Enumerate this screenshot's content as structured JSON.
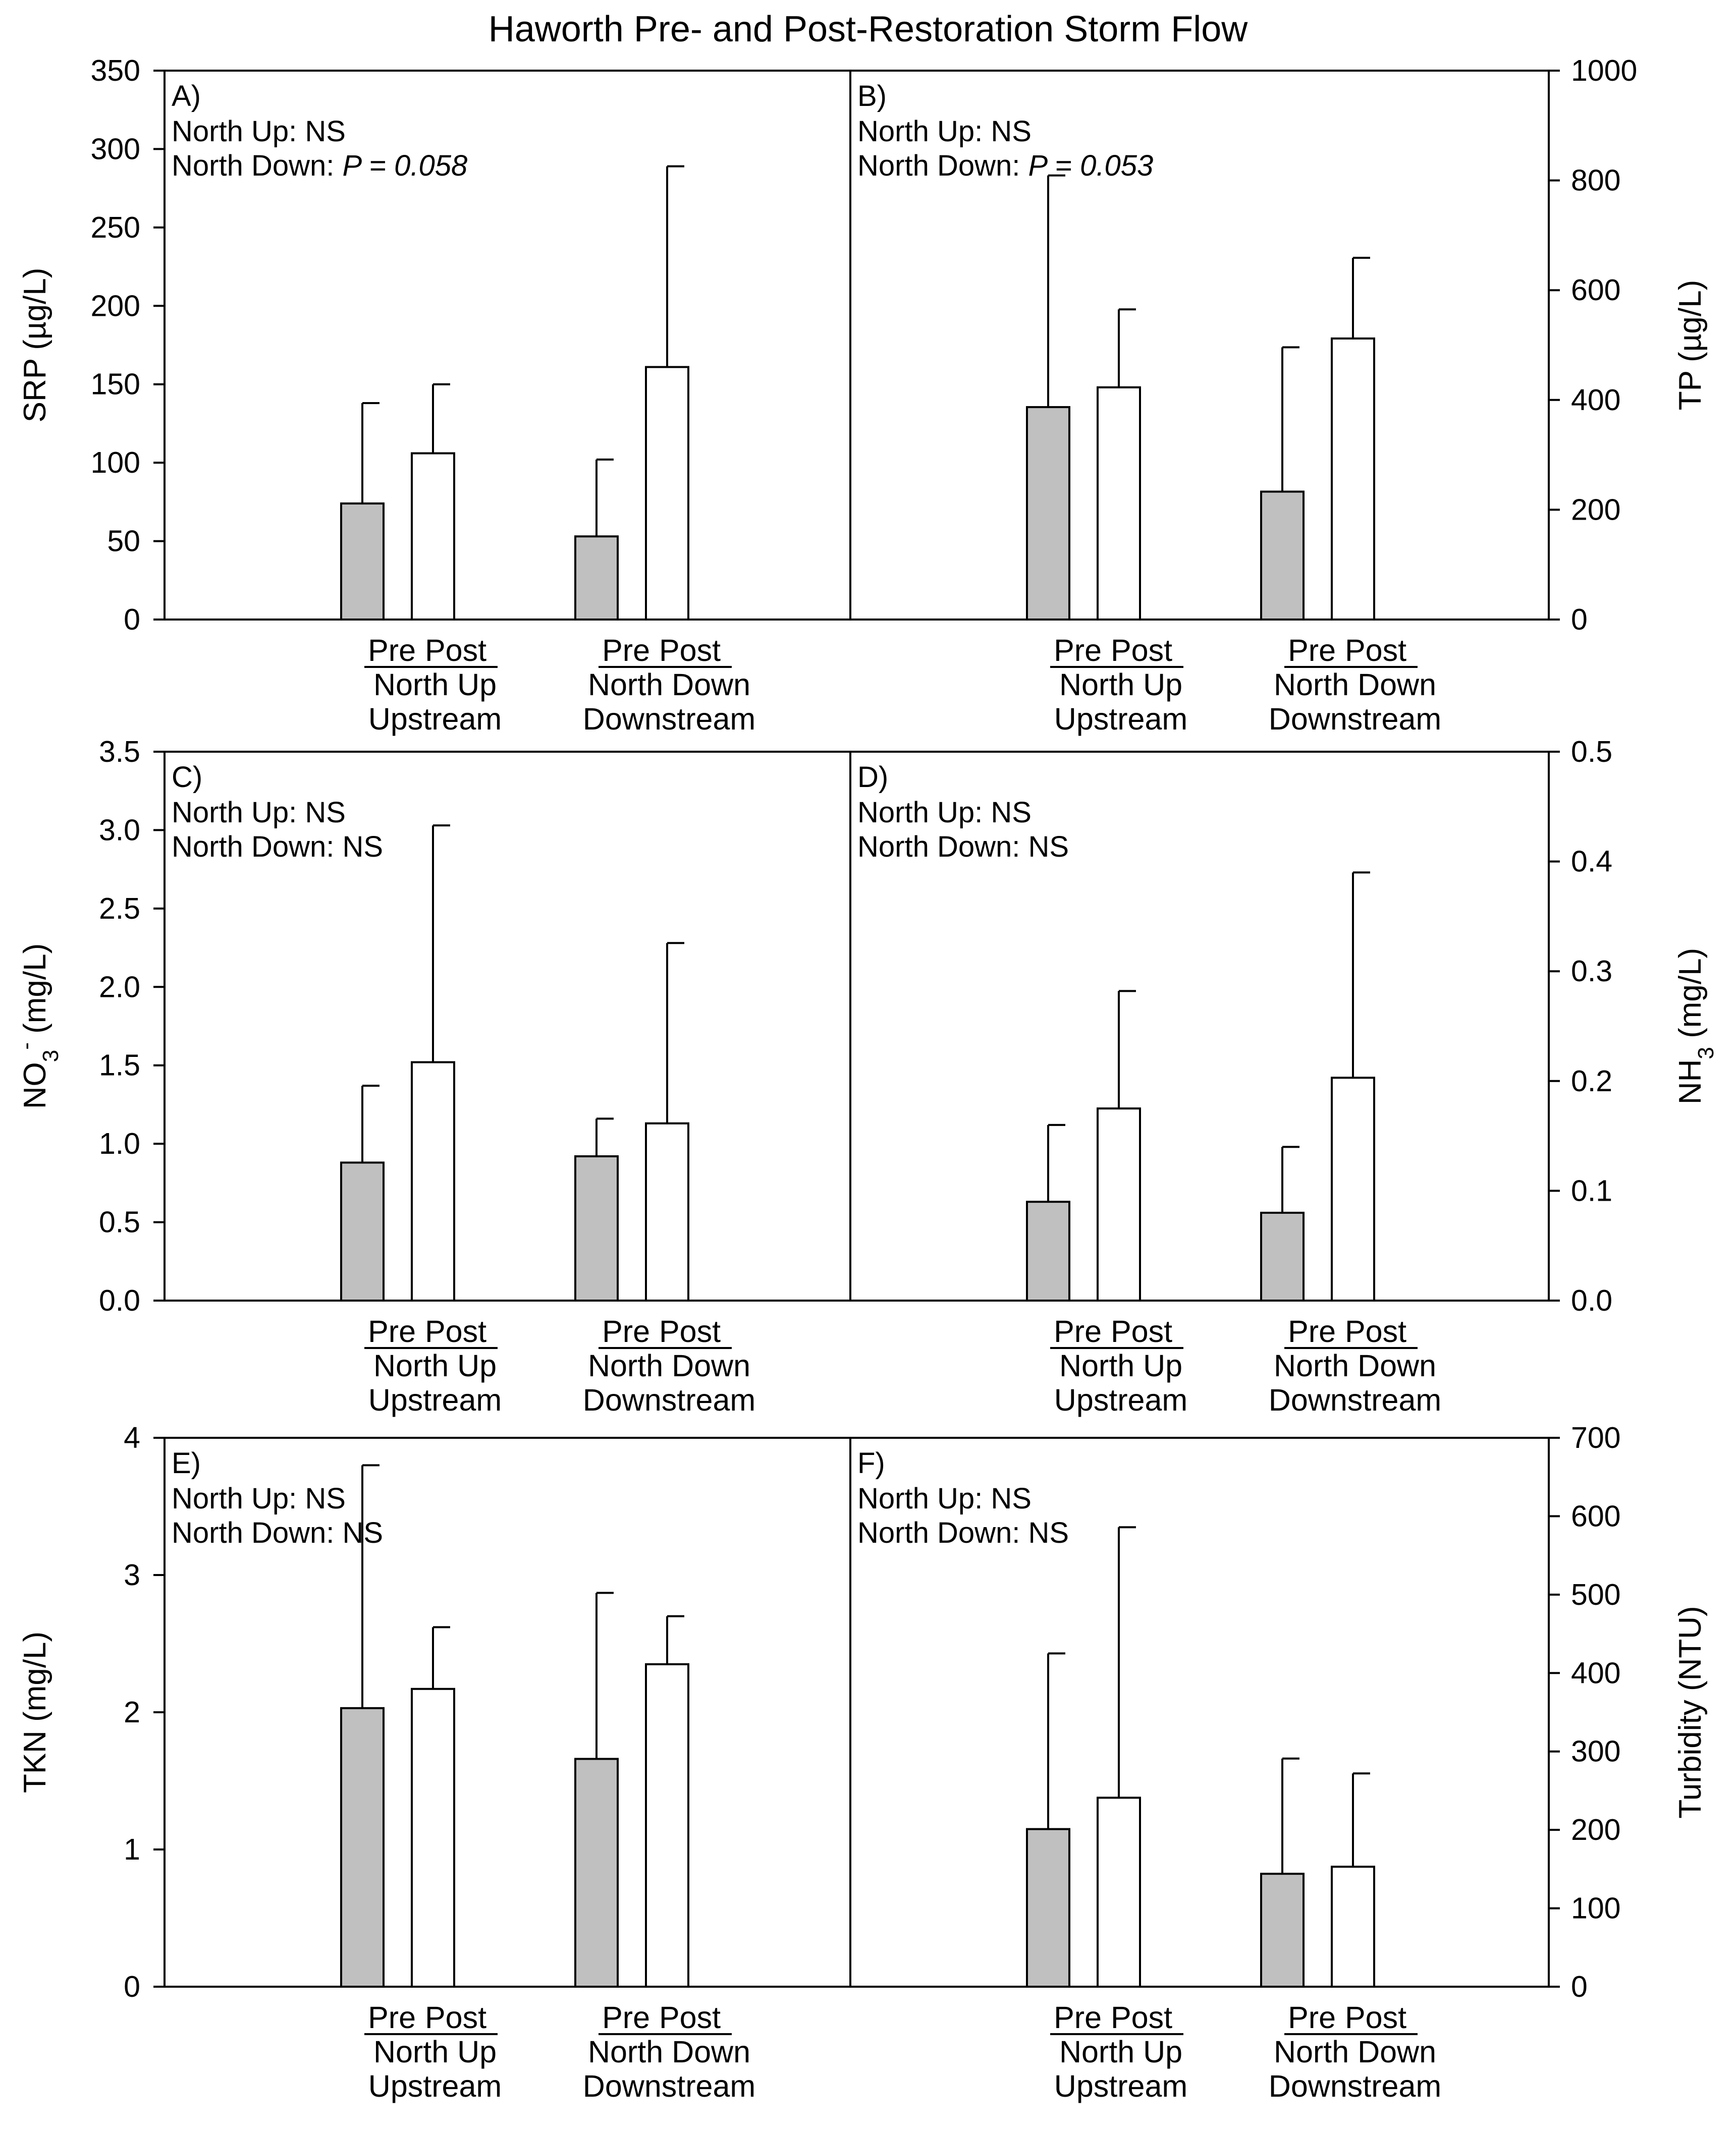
{
  "title": "Haworth Pre- and Post-Restoration Storm Flow",
  "labels": {
    "pre": "Pre",
    "post": "Post",
    "groups": [
      {
        "site": "North Up",
        "position": "Upstream"
      },
      {
        "site": "North Down",
        "position": "Downstream"
      }
    ]
  },
  "chart_data": [
    {
      "panel": "A)",
      "type": "bar",
      "axis_side": "left",
      "ylabel": "SRP (µg/L)",
      "ylim": [
        0,
        350
      ],
      "yticks": [
        0,
        50,
        100,
        150,
        200,
        250,
        300,
        350
      ],
      "annot_up": "North Up: NS",
      "annot_down_prefix": "North Down: ",
      "annot_down_p": "P = 0.058",
      "categories": [
        "North Up Upstream",
        "North Down Downstream"
      ],
      "series": [
        {
          "name": "Pre",
          "values": [
            74,
            53
          ],
          "errors": [
            64,
            49
          ]
        },
        {
          "name": "Post",
          "values": [
            106,
            161
          ],
          "errors": [
            44,
            128
          ]
        }
      ]
    },
    {
      "panel": "B)",
      "type": "bar",
      "axis_side": "right",
      "ylabel": "TP (µg/L)",
      "ylim": [
        0,
        1000
      ],
      "yticks": [
        0,
        200,
        400,
        600,
        800,
        1000
      ],
      "annot_up": "North Up: NS",
      "annot_down_prefix": "North Down: ",
      "annot_down_p": "P = 0.053",
      "categories": [
        "North Up Upstream",
        "North Down Downstream"
      ],
      "series": [
        {
          "name": "Pre",
          "values": [
            387,
            233
          ],
          "errors": [
            422,
            263
          ]
        },
        {
          "name": "Post",
          "values": [
            423,
            512
          ],
          "errors": [
            142,
            147
          ]
        }
      ]
    },
    {
      "panel": "C)",
      "type": "bar",
      "axis_side": "left",
      "ylabel": "NO3- (mg/L)",
      "ylabel_main": "NO",
      "ylabel_sub": "3",
      "ylabel_sup": "-",
      "ylabel_unit": " (mg/L)",
      "ylim": [
        0,
        3.5
      ],
      "yticks": [
        "0.0",
        "0.5",
        "1.0",
        "1.5",
        "2.0",
        "2.5",
        "3.0",
        "3.5"
      ],
      "annot_up": "North Up: NS",
      "annot_down": "North Down: NS",
      "categories": [
        "North Up Upstream",
        "North Down Downstream"
      ],
      "series": [
        {
          "name": "Pre",
          "values": [
            0.88,
            0.92
          ],
          "errors": [
            0.49,
            0.24
          ]
        },
        {
          "name": "Post",
          "values": [
            1.52,
            1.13
          ],
          "errors": [
            1.51,
            1.15
          ]
        }
      ]
    },
    {
      "panel": "D)",
      "type": "bar",
      "axis_side": "right",
      "ylabel": "NH3 (mg/L)",
      "ylabel_main": "NH",
      "ylabel_sub": "3",
      "ylabel_unit": " (mg/L)",
      "ylim": [
        0,
        0.5
      ],
      "yticks": [
        "0.0",
        "0.1",
        "0.2",
        "0.3",
        "0.4",
        "0.5"
      ],
      "annot_up": "North Up: NS",
      "annot_down": "North Down: NS",
      "categories": [
        "North Up Upstream",
        "North Down Downstream"
      ],
      "series": [
        {
          "name": "Pre",
          "values": [
            0.09,
            0.08
          ],
          "errors": [
            0.07,
            0.06
          ]
        },
        {
          "name": "Post",
          "values": [
            0.175,
            0.203
          ],
          "errors": [
            0.107,
            0.187
          ]
        }
      ]
    },
    {
      "panel": "E)",
      "type": "bar",
      "axis_side": "left",
      "ylabel": "TKN (mg/L)",
      "ylim": [
        0,
        4
      ],
      "yticks": [
        0,
        1,
        2,
        3,
        4
      ],
      "annot_up": "North Up: NS",
      "annot_down": "North Down: NS",
      "categories": [
        "North Up Upstream",
        "North Down Downstream"
      ],
      "series": [
        {
          "name": "Pre",
          "values": [
            2.03,
            1.66
          ],
          "errors": [
            1.77,
            1.21
          ]
        },
        {
          "name": "Post",
          "values": [
            2.17,
            2.35
          ],
          "errors": [
            0.45,
            0.35
          ]
        }
      ]
    },
    {
      "panel": "F)",
      "type": "bar",
      "axis_side": "right",
      "ylabel": "Turbidity (NTU)",
      "ylim": [
        0,
        700
      ],
      "yticks": [
        0,
        100,
        200,
        300,
        400,
        500,
        600,
        700
      ],
      "annot_up": "North Up: NS",
      "annot_down": "North Down: NS",
      "categories": [
        "North Up Upstream",
        "North Down Downstream"
      ],
      "series": [
        {
          "name": "Pre",
          "values": [
            201,
            144
          ],
          "errors": [
            224,
            147
          ]
        },
        {
          "name": "Post",
          "values": [
            241,
            153
          ],
          "errors": [
            345,
            119
          ]
        }
      ]
    }
  ]
}
